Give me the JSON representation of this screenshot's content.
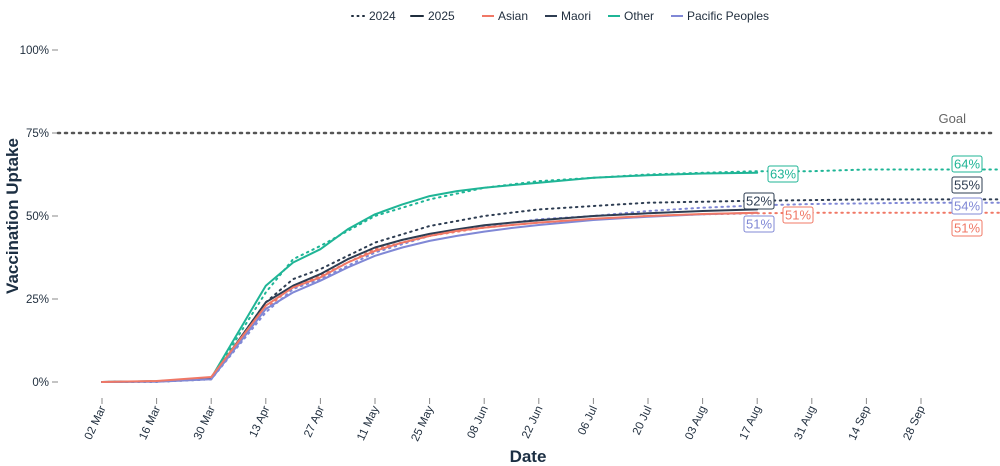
{
  "chart_data": {
    "type": "line",
    "xlabel": "Date",
    "ylabel": "Vaccination Uptake",
    "x_ticks": [
      "02 Mar",
      "16 Mar",
      "30 Mar",
      "13 Apr",
      "27 Apr",
      "11 May",
      "25 May",
      "08 Jun",
      "22 Jun",
      "06 Jul",
      "20 Jul",
      "03 Aug",
      "17 Aug",
      "31 Aug",
      "14 Sep",
      "28 Sep"
    ],
    "y_ticks": [
      "0%",
      "25%",
      "50%",
      "75%",
      "100%"
    ],
    "ylim": [
      0,
      100
    ],
    "grid": false,
    "legend": {
      "placement": "top-center",
      "year_items": [
        {
          "label": "2024",
          "style": "dotted"
        },
        {
          "label": "2025",
          "style": "solid"
        }
      ],
      "group_items": [
        {
          "label": "Asian",
          "color": "#f07866"
        },
        {
          "label": "Maori",
          "color": "#2e3d52"
        },
        {
          "label": "Other",
          "color": "#1fb596"
        },
        {
          "label": "Pacific Peoples",
          "color": "#8088d6"
        }
      ]
    },
    "goal": {
      "label": "Goal",
      "value": 75
    },
    "series": [
      {
        "name": "Other",
        "year": "2024",
        "color": "#1fb596",
        "style": "dotted",
        "x": [
          0,
          1,
          2,
          3,
          3.5,
          4,
          5,
          6,
          7,
          8,
          9,
          10,
          11,
          12,
          13,
          14,
          15,
          16.5
        ],
        "y": [
          0,
          0.1,
          0.9,
          27,
          37,
          41,
          50,
          55,
          58.5,
          60.5,
          61.5,
          62.5,
          63,
          63.5,
          63.5,
          64,
          64,
          64
        ],
        "end_label": "64%"
      },
      {
        "name": "Other",
        "year": "2025",
        "color": "#1fb596",
        "style": "solid",
        "x": [
          0,
          1,
          2,
          3,
          3.5,
          4,
          4.5,
          5,
          5.5,
          6,
          6.5,
          7,
          7.5,
          8,
          9,
          10,
          11,
          12
        ],
        "y": [
          0,
          0.2,
          1.2,
          29,
          36,
          40,
          46,
          50.5,
          53.5,
          56,
          57.5,
          58.5,
          59.3,
          60,
          61.5,
          62.3,
          62.8,
          63
        ],
        "end_label": "63%"
      },
      {
        "name": "Maori",
        "year": "2024",
        "color": "#2e3d52",
        "style": "dotted",
        "x": [
          0,
          1,
          2,
          3,
          3.5,
          4,
          5,
          6,
          7,
          8,
          9,
          10,
          11,
          12,
          13,
          14,
          15,
          16.5
        ],
        "y": [
          0,
          0.1,
          0.8,
          24,
          31,
          34,
          42,
          47,
          50,
          52,
          53,
          54,
          54.3,
          54.6,
          54.8,
          55,
          55,
          55
        ],
        "end_label": "55%"
      },
      {
        "name": "Maori",
        "year": "2025",
        "color": "#2e3d52",
        "style": "solid",
        "x": [
          0,
          1,
          2,
          3,
          3.5,
          4,
          4.5,
          5,
          5.5,
          6,
          6.5,
          7,
          7.5,
          8,
          9,
          10,
          11,
          12
        ],
        "y": [
          0,
          0.2,
          1,
          24,
          29,
          32.5,
          37,
          40.5,
          42.8,
          44.6,
          46,
          47.2,
          48,
          48.7,
          50,
          50.8,
          51.5,
          52
        ],
        "end_label": "52%"
      },
      {
        "name": "Pacific Peoples",
        "year": "2024",
        "color": "#8088d6",
        "style": "dotted",
        "x": [
          0,
          1,
          2,
          3,
          3.5,
          4,
          5,
          6,
          7,
          8,
          9,
          10,
          11,
          12,
          13,
          14,
          15,
          16.5
        ],
        "y": [
          0,
          0.1,
          0.8,
          21,
          28,
          31,
          39,
          44,
          47,
          49,
          50,
          51.5,
          52.5,
          53.2,
          53.6,
          53.8,
          54,
          54
        ],
        "end_label": "54%"
      },
      {
        "name": "Pacific Peoples",
        "year": "2025",
        "color": "#8088d6",
        "style": "solid",
        "x": [
          0,
          1,
          2,
          3,
          3.5,
          4,
          4.5,
          5,
          5.5,
          6,
          6.5,
          7,
          7.5,
          8,
          9,
          10,
          11,
          12
        ],
        "y": [
          0,
          0.1,
          0.8,
          22,
          27,
          30.5,
          34.5,
          38,
          40.5,
          42.5,
          44,
          45.3,
          46.4,
          47.3,
          48.8,
          49.8,
          50.5,
          51
        ],
        "end_label": "51%"
      },
      {
        "name": "Asian",
        "year": "2024",
        "color": "#f07866",
        "style": "dotted",
        "x": [
          0,
          1,
          2,
          3,
          3.5,
          4,
          5,
          6,
          7,
          8,
          9,
          10,
          11,
          12,
          13,
          14,
          15,
          16.5
        ],
        "y": [
          0,
          0.2,
          1.2,
          22,
          29,
          32,
          40,
          44,
          46.5,
          48,
          49,
          50,
          50.5,
          50.8,
          51,
          51,
          51,
          51
        ],
        "end_label": "51%"
      },
      {
        "name": "Asian",
        "year": "2025",
        "color": "#f07866",
        "style": "solid",
        "x": [
          0,
          1,
          2,
          3,
          3.5,
          4,
          4.5,
          5,
          5.5,
          6,
          6.5,
          7,
          7.5,
          8,
          9,
          10,
          11,
          12
        ],
        "y": [
          0,
          0.3,
          1.5,
          23,
          28.5,
          31.5,
          36,
          39.5,
          42,
          44,
          45.5,
          46.5,
          47.3,
          48,
          49.2,
          50,
          50.6,
          51
        ],
        "end_label": "51%"
      }
    ]
  }
}
